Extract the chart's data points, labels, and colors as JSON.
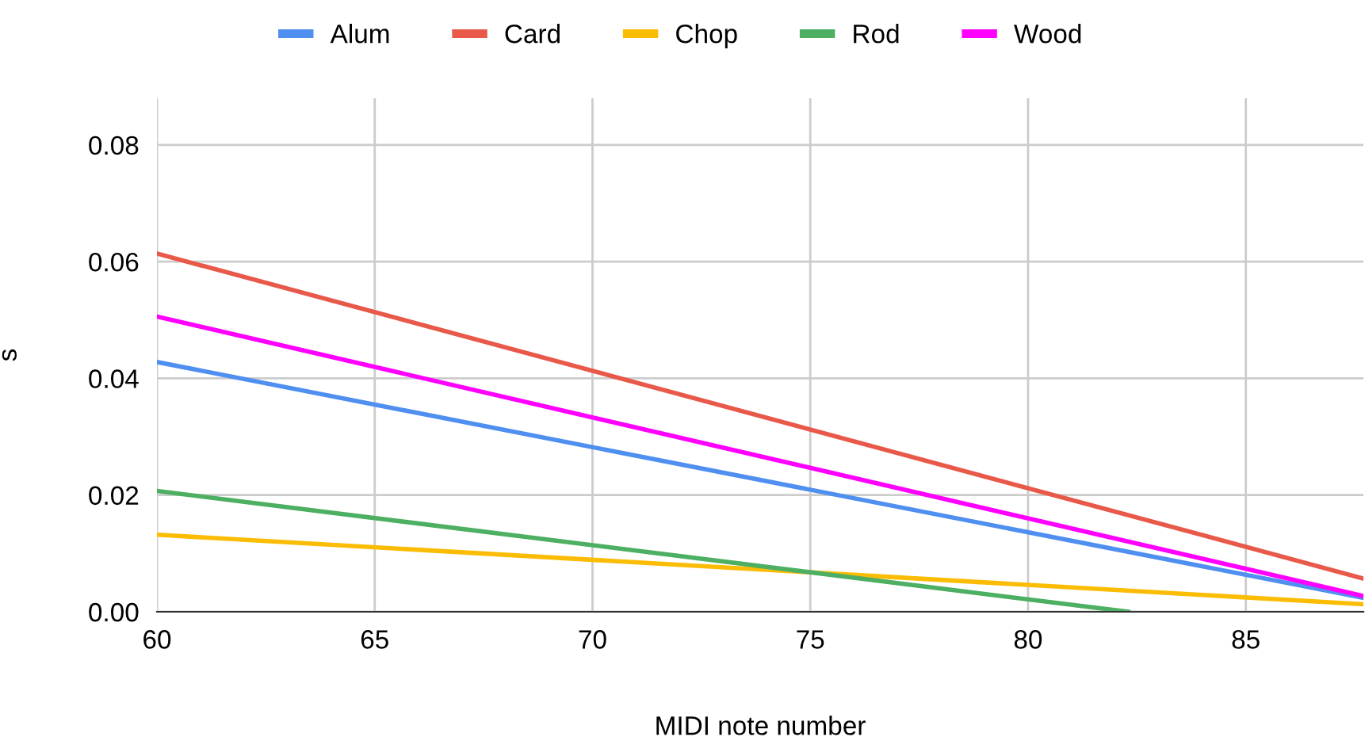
{
  "chart_data": {
    "type": "line",
    "xlabel": "MIDI note number",
    "ylabel": "s",
    "x": [
      60,
      87.7
    ],
    "series": [
      {
        "name": "Alum",
        "color": "#4f8ff0",
        "values": [
          0.0428,
          0.0024
        ]
      },
      {
        "name": "Card",
        "color": "#e8594a",
        "values": [
          0.0614,
          0.0057
        ]
      },
      {
        "name": "Chop",
        "color": "#fbbc04",
        "values": [
          0.0132,
          0.0013
        ]
      },
      {
        "name": "Rod",
        "color": "#4caf62",
        "x": [
          60,
          82.3
        ],
        "values": [
          0.0207,
          0
        ]
      },
      {
        "name": "Wood",
        "color": "#ff00ff",
        "values": [
          0.0506,
          0.0027
        ]
      }
    ],
    "xlim": [
      60,
      87.7
    ],
    "xticks": [
      60,
      65,
      70,
      75,
      80,
      85
    ],
    "ylim": [
      0,
      0.088
    ],
    "yticks": [
      {
        "value": 0,
        "label": "0.00"
      },
      {
        "value": 0.02,
        "label": "0.02"
      },
      {
        "value": 0.04,
        "label": "0.04"
      },
      {
        "value": 0.06,
        "label": "0.06"
      },
      {
        "value": 0.08,
        "label": "0.08"
      }
    ],
    "grid": true,
    "legend": "top",
    "marker": "none",
    "line_style": "solid"
  }
}
